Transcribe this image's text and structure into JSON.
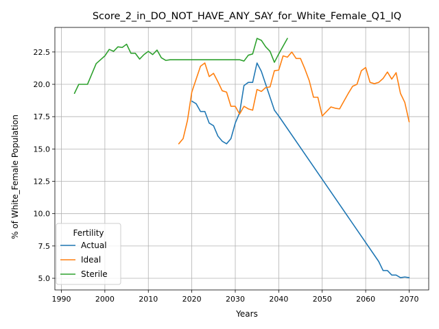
{
  "chart_data": {
    "type": "line",
    "title": "Score_2_in_DO_NOT_HAVE_ANY_SAY_for_White_Female_Q1_IQ",
    "xlabel": "Years",
    "ylabel": "% of White_Female Population",
    "xlim": [
      1988.5,
      2074.5
    ],
    "ylim": [
      4.1,
      24.4
    ],
    "xticks": [
      1990,
      2000,
      2010,
      2020,
      2030,
      2040,
      2050,
      2060,
      2070
    ],
    "yticks": [
      5.0,
      7.5,
      10.0,
      12.5,
      15.0,
      17.5,
      20.0,
      22.5
    ],
    "xtick_labels": [
      "1990",
      "2000",
      "2010",
      "2020",
      "2030",
      "2040",
      "2050",
      "2060",
      "2070"
    ],
    "ytick_labels": [
      "5.0",
      "7.5",
      "10.0",
      "12.5",
      "15.0",
      "17.5",
      "20.0",
      "22.5"
    ],
    "grid": true,
    "legend": {
      "title": "Fertility",
      "placement": "lower-left"
    },
    "series": [
      {
        "name": "Actual",
        "color": "#1f77b4",
        "points": [
          [
            2020,
            18.7
          ],
          [
            2021,
            18.5
          ],
          [
            2022,
            17.9
          ],
          [
            2023,
            17.9
          ],
          [
            2024,
            17.0
          ],
          [
            2025,
            16.8
          ],
          [
            2026,
            16.0
          ],
          [
            2027,
            15.6
          ],
          [
            2028,
            15.4
          ],
          [
            2029,
            15.8
          ],
          [
            2030,
            17.0
          ],
          [
            2031,
            17.8
          ],
          [
            2032,
            19.9
          ],
          [
            2033,
            20.15
          ],
          [
            2034,
            20.15
          ],
          [
            2035,
            21.65
          ],
          [
            2036,
            21.0
          ],
          [
            2037,
            20.0
          ],
          [
            2038,
            19.0
          ],
          [
            2039,
            18.0
          ],
          [
            2040,
            17.55
          ],
          [
            2063,
            6.3
          ],
          [
            2064,
            5.6
          ],
          [
            2065,
            5.6
          ],
          [
            2066,
            5.25
          ],
          [
            2067,
            5.25
          ],
          [
            2068,
            5.05
          ],
          [
            2069,
            5.1
          ],
          [
            2070,
            5.05
          ]
        ]
      },
      {
        "name": "Ideal",
        "color": "#ff7f0e",
        "points": [
          [
            2017,
            15.4
          ],
          [
            2018,
            15.8
          ],
          [
            2019,
            17.2
          ],
          [
            2020,
            19.4
          ],
          [
            2021,
            20.4
          ],
          [
            2022,
            21.4
          ],
          [
            2023,
            21.65
          ],
          [
            2024,
            20.6
          ],
          [
            2025,
            20.85
          ],
          [
            2026,
            20.2
          ],
          [
            2027,
            19.5
          ],
          [
            2028,
            19.4
          ],
          [
            2029,
            18.3
          ],
          [
            2030,
            18.3
          ],
          [
            2031,
            17.7
          ],
          [
            2032,
            18.3
          ],
          [
            2033,
            18.1
          ],
          [
            2034,
            18.0
          ],
          [
            2035,
            19.6
          ],
          [
            2036,
            19.45
          ],
          [
            2037,
            19.75
          ],
          [
            2038,
            19.8
          ],
          [
            2039,
            21.05
          ],
          [
            2040,
            21.1
          ],
          [
            2041,
            22.2
          ],
          [
            2042,
            22.1
          ],
          [
            2043,
            22.5
          ],
          [
            2044,
            22.0
          ],
          [
            2045,
            22.0
          ],
          [
            2046,
            21.2
          ],
          [
            2047,
            20.3
          ],
          [
            2048,
            19.0
          ],
          [
            2049,
            19.0
          ],
          [
            2050,
            17.55
          ],
          [
            2051,
            17.9
          ],
          [
            2052,
            18.25
          ],
          [
            2053,
            18.15
          ],
          [
            2054,
            18.1
          ],
          [
            2055,
            18.7
          ],
          [
            2056,
            19.3
          ],
          [
            2057,
            19.85
          ],
          [
            2058,
            20.0
          ],
          [
            2059,
            21.05
          ],
          [
            2060,
            21.3
          ],
          [
            2061,
            20.15
          ],
          [
            2062,
            20.05
          ],
          [
            2063,
            20.15
          ],
          [
            2064,
            20.45
          ],
          [
            2065,
            20.95
          ],
          [
            2066,
            20.4
          ],
          [
            2067,
            20.9
          ],
          [
            2068,
            19.3
          ],
          [
            2069,
            18.6
          ],
          [
            2070,
            17.1
          ]
        ]
      },
      {
        "name": "Sterile",
        "color": "#2ca02c",
        "points": [
          [
            1993,
            19.3
          ],
          [
            1994,
            20.0
          ],
          [
            1995,
            20.0
          ],
          [
            1996,
            20.0
          ],
          [
            1997,
            20.8
          ],
          [
            1998,
            21.6
          ],
          [
            1999,
            21.9
          ],
          [
            2000,
            22.2
          ],
          [
            2001,
            22.7
          ],
          [
            2002,
            22.55
          ],
          [
            2003,
            22.9
          ],
          [
            2004,
            22.85
          ],
          [
            2005,
            23.1
          ],
          [
            2006,
            22.4
          ],
          [
            2007,
            22.4
          ],
          [
            2008,
            21.95
          ],
          [
            2009,
            22.3
          ],
          [
            2010,
            22.55
          ],
          [
            2011,
            22.3
          ],
          [
            2012,
            22.65
          ],
          [
            2013,
            22.05
          ],
          [
            2014,
            21.85
          ],
          [
            2015,
            21.9
          ],
          [
            2016,
            21.9
          ],
          [
            2031,
            21.9
          ],
          [
            2032,
            21.8
          ],
          [
            2033,
            22.25
          ],
          [
            2034,
            22.35
          ],
          [
            2035,
            23.55
          ],
          [
            2036,
            23.4
          ],
          [
            2037,
            22.9
          ],
          [
            2038,
            22.55
          ],
          [
            2039,
            21.7
          ],
          [
            2040,
            22.35
          ],
          [
            2041,
            22.95
          ],
          [
            2042,
            23.55
          ]
        ]
      }
    ]
  }
}
